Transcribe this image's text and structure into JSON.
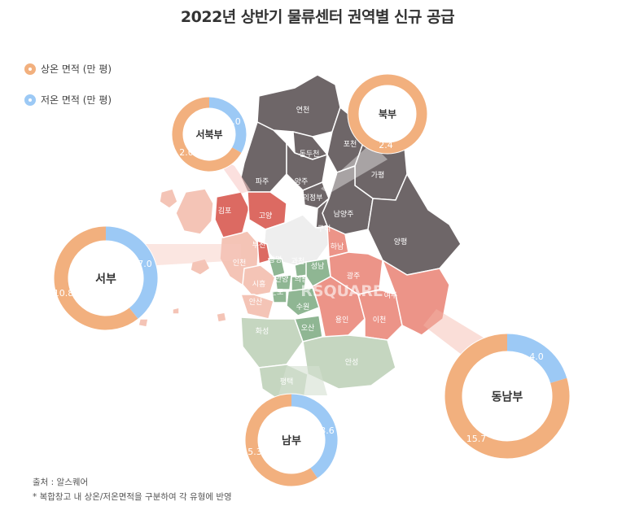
{
  "title": "2022년 상반기 물류센터 권역별 신규 공급",
  "legend": {
    "normal": {
      "label": "상온 면적 (만 평)",
      "color": "#f2b07e"
    },
    "cold": {
      "label": "저온 면적 (만 평)",
      "color": "#9cc9f5"
    }
  },
  "source": "출처 : 알스퀘어",
  "note": "* 복합창고 내 상온/저온면적을 구분하여 각 유형에 반영",
  "watermark": "RSQUARE",
  "colors": {
    "north": "#6e6668",
    "southeast": "#ec9488",
    "northwest_hi": "#dc6a62",
    "west": "#f4c4b6",
    "south": "#c5d6c0",
    "south_dark": "#8fb693",
    "seoul": "#eeeeee",
    "normal": "#f2b07e",
    "cold": "#9cc9f5"
  },
  "map_labels": [
    "연천",
    "포천",
    "동두천",
    "파주",
    "양주",
    "가평",
    "의정부",
    "김포",
    "고양",
    "남양주",
    "구리",
    "양평",
    "부천",
    "하남",
    "광명",
    "과천",
    "성남",
    "광주",
    "안양",
    "의왕",
    "여주",
    "시흥",
    "군포",
    "수원",
    "안산",
    "용인",
    "이천",
    "화성",
    "오산",
    "안성",
    "평택",
    "인천"
  ],
  "chart_data": {
    "type": "pie",
    "title": "2022년 상반기 물류센터 권역별 신규 공급",
    "series_names": [
      "상온 면적 (만 평)",
      "저온 면적 (만 평)"
    ],
    "categories": [
      "서북부",
      "북부",
      "서부",
      "남부",
      "동남부"
    ],
    "series": [
      {
        "name": "상온 면적 (만 평)",
        "values": [
          2.0,
          2.4,
          10.8,
          5.3,
          15.7
        ]
      },
      {
        "name": "저온 면적 (만 평)",
        "values": [
          1.0,
          0,
          7.0,
          3.6,
          4.0
        ]
      }
    ],
    "labels": {
      "서북부": {
        "normal": "2.0",
        "cold": "1.0"
      },
      "북부": {
        "normal": "2.4",
        "cold": ""
      },
      "서부": {
        "normal": "10.8",
        "cold": "7.0"
      },
      "남부": {
        "normal": "5.3",
        "cold": "3.6"
      },
      "동남부": {
        "normal": "15.7",
        "cold": "4.0"
      }
    }
  }
}
